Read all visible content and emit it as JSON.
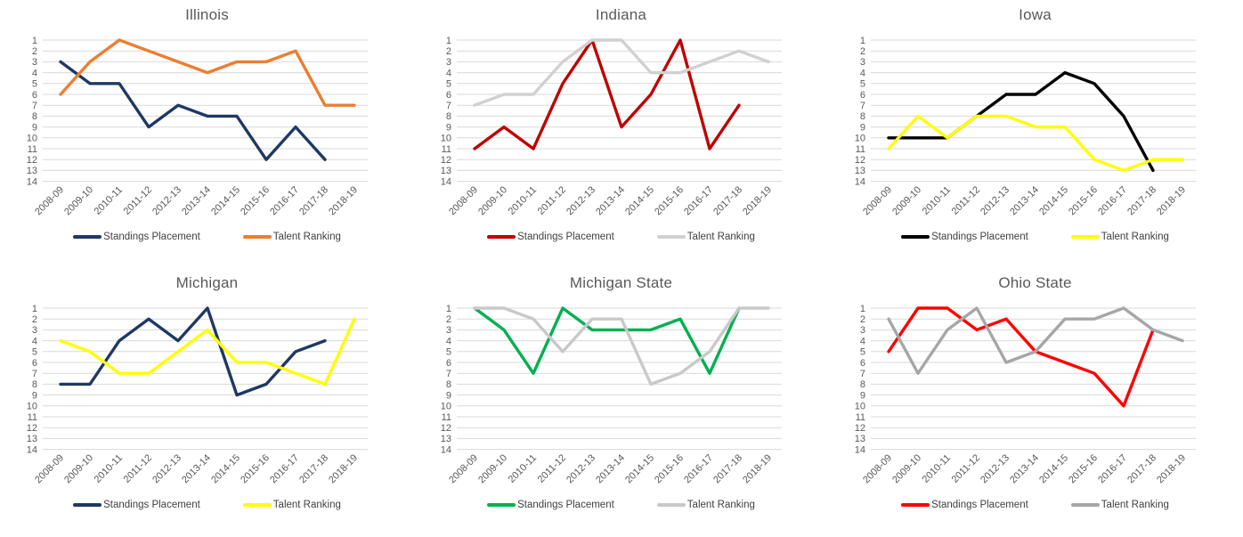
{
  "page": {
    "background": "#FFFFFF",
    "grid_color": "#D9D9D9",
    "title_color": "#595959",
    "axis_label_color": "#595959",
    "legend_text_color": "#404040"
  },
  "legend": {
    "standings_label": "Standings Placement",
    "talent_label": "Talent Ranking",
    "position": "bottom"
  },
  "chart_data": [
    {
      "type": "line",
      "title": "Illinois",
      "categories": [
        "2008-09",
        "2009-10",
        "2010-11",
        "2011-12",
        "2012-13",
        "2013-14",
        "2014-15",
        "2015-16",
        "2016-17",
        "2017-18",
        "2018-19"
      ],
      "yticks": [
        1,
        2,
        3,
        4,
        5,
        6,
        7,
        8,
        9,
        10,
        11,
        12,
        13,
        14
      ],
      "ylim": [
        1,
        14
      ],
      "y_axis_inverted": true,
      "grid": "horizontal",
      "legend_position": "bottom",
      "series": [
        {
          "name": "Standings Placement",
          "color": "#1F3864",
          "values": [
            3,
            5,
            5,
            9,
            7,
            8,
            8,
            12,
            9,
            12,
            null
          ]
        },
        {
          "name": "Talent Ranking",
          "color": "#ED7D31",
          "values": [
            6,
            3,
            1,
            2,
            3,
            4,
            3,
            3,
            2,
            7,
            7
          ]
        }
      ]
    },
    {
      "type": "line",
      "title": "Indiana",
      "categories": [
        "2008-09",
        "2009-10",
        "2010-11",
        "2011-12",
        "2012-13",
        "2013-14",
        "2014-15",
        "2015-16",
        "2016-17",
        "2017-18",
        "2018-19"
      ],
      "yticks": [
        1,
        2,
        3,
        4,
        5,
        6,
        7,
        8,
        9,
        10,
        11,
        12,
        13,
        14
      ],
      "ylim": [
        1,
        14
      ],
      "y_axis_inverted": true,
      "grid": "horizontal",
      "legend_position": "bottom",
      "series": [
        {
          "name": "Standings Placement",
          "color": "#C00000",
          "values": [
            11,
            9,
            11,
            5,
            1,
            9,
            6,
            1,
            11,
            7,
            null
          ]
        },
        {
          "name": "Talent Ranking",
          "color": "#D2D0D0",
          "values": [
            7,
            6,
            6,
            3,
            1,
            1,
            4,
            4,
            3,
            2,
            3
          ]
        }
      ]
    },
    {
      "type": "line",
      "title": "Iowa",
      "categories": [
        "2008-09",
        "2009-10",
        "2010-11",
        "2011-12",
        "2012-13",
        "2013-14",
        "2014-15",
        "2015-16",
        "2016-17",
        "2017-18",
        "2018-19"
      ],
      "yticks": [
        1,
        2,
        3,
        4,
        5,
        6,
        7,
        8,
        9,
        10,
        11,
        12,
        13,
        14
      ],
      "ylim": [
        1,
        14
      ],
      "y_axis_inverted": true,
      "grid": "horizontal",
      "legend_position": "bottom",
      "series": [
        {
          "name": "Standings Placement",
          "color": "#000000",
          "values": [
            10,
            10,
            10,
            8,
            6,
            6,
            4,
            5,
            8,
            13,
            null
          ]
        },
        {
          "name": "Talent Ranking",
          "color": "#FFFF00",
          "values": [
            11,
            8,
            10,
            8,
            8,
            9,
            9,
            12,
            13,
            12,
            12
          ]
        }
      ]
    },
    {
      "type": "line",
      "title": "Michigan",
      "categories": [
        "2008-09",
        "2009-10",
        "2010-11",
        "2011-12",
        "2012-13",
        "2013-14",
        "2014-15",
        "2015-16",
        "2016-17",
        "2017-18",
        "2018-19"
      ],
      "yticks": [
        1,
        2,
        3,
        4,
        5,
        6,
        7,
        8,
        9,
        10,
        11,
        12,
        13,
        14
      ],
      "ylim": [
        1,
        14
      ],
      "y_axis_inverted": true,
      "grid": "horizontal",
      "legend_position": "bottom",
      "series": [
        {
          "name": "Standings Placement",
          "color": "#1F3864",
          "values": [
            8,
            8,
            4,
            2,
            4,
            1,
            9,
            8,
            5,
            4,
            null
          ]
        },
        {
          "name": "Talent Ranking",
          "color": "#FFFF00",
          "values": [
            4,
            5,
            7,
            7,
            5,
            3,
            6,
            6,
            7,
            8,
            2
          ]
        }
      ]
    },
    {
      "type": "line",
      "title": "Michigan State",
      "categories": [
        "2008-09",
        "2009-10",
        "2010-11",
        "2011-12",
        "2012-13",
        "2013-14",
        "2014-15",
        "2015-16",
        "2016-17",
        "2017-18",
        "2018-19"
      ],
      "yticks": [
        1,
        2,
        3,
        4,
        5,
        6,
        7,
        8,
        9,
        10,
        11,
        12,
        13,
        14
      ],
      "ylim": [
        1,
        14
      ],
      "y_axis_inverted": true,
      "grid": "horizontal",
      "legend_position": "bottom",
      "series": [
        {
          "name": "Standings Placement",
          "color": "#00B050",
          "values": [
            1,
            3,
            7,
            1,
            3,
            3,
            3,
            2,
            7,
            1,
            null
          ]
        },
        {
          "name": "Talent Ranking",
          "color": "#C9C9C9",
          "values": [
            1,
            1,
            2,
            5,
            2,
            2,
            8,
            7,
            5,
            1,
            1
          ]
        }
      ]
    },
    {
      "type": "line",
      "title": "Ohio State",
      "categories": [
        "2008-09",
        "2009-10",
        "2010-11",
        "2011-12",
        "2012-13",
        "2013-14",
        "2014-15",
        "2015-16",
        "2016-17",
        "2017-18",
        "2018-19"
      ],
      "yticks": [
        1,
        2,
        3,
        4,
        5,
        6,
        7,
        8,
        9,
        10,
        11,
        12,
        13,
        14
      ],
      "ylim": [
        1,
        14
      ],
      "y_axis_inverted": true,
      "grid": "horizontal",
      "legend_position": "bottom",
      "series": [
        {
          "name": "Standings Placement",
          "color": "#FF0000",
          "values": [
            5,
            1,
            1,
            3,
            2,
            5,
            6,
            7,
            10,
            3,
            null
          ]
        },
        {
          "name": "Talent Ranking",
          "color": "#A6A6A6",
          "values": [
            2,
            7,
            3,
            1,
            6,
            5,
            2,
            2,
            1,
            3,
            4
          ]
        }
      ]
    }
  ]
}
